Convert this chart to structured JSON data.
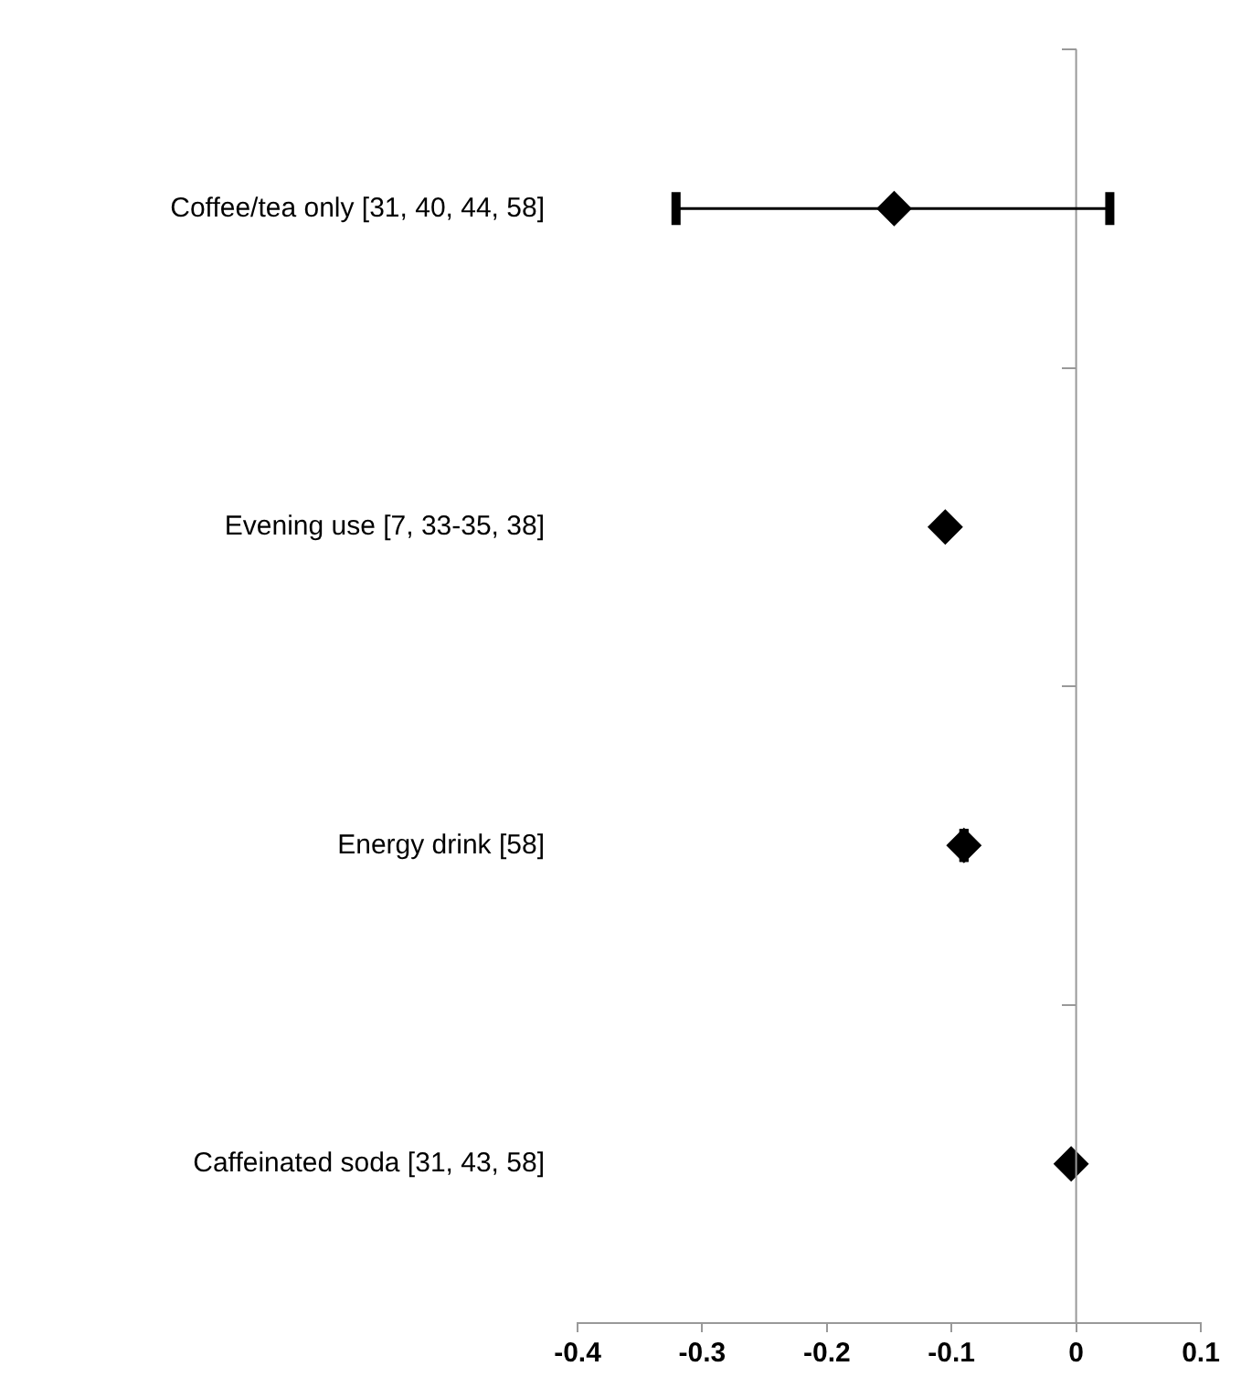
{
  "chart_data": {
    "type": "scatter",
    "orientation": "horizontal",
    "categories": [
      "Coffee/tea only [31, 40, 44, 58]",
      "Evening use [7, 33-35, 38]",
      "Energy drink [58]",
      "Caffeinated soda [31, 43, 58]"
    ],
    "values": [
      -0.146,
      -0.105,
      -0.09,
      -0.004
    ],
    "errors": [
      [
        -0.321,
        0.027
      ],
      null,
      [
        -0.09,
        -0.09
      ],
      null
    ],
    "color": "#000000",
    "marker": "diamond",
    "xlim": [
      -0.4,
      0.1
    ],
    "xticks": [
      -0.4,
      -0.3,
      -0.2,
      -0.1,
      0,
      0.1
    ],
    "grid": false,
    "ref_lines": [
      {
        "axis": "x",
        "value": 0,
        "color": "#999999"
      }
    ],
    "legend": false
  }
}
